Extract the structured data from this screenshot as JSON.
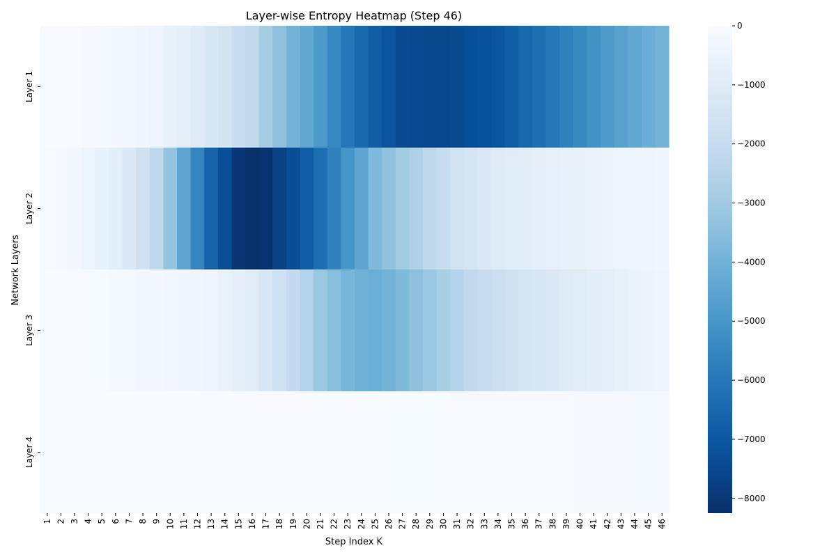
{
  "chart_data": {
    "type": "heatmap",
    "title": "Layer-wise Entropy Heatmap (Step 46)",
    "xlabel": "Step Index K",
    "ylabel": "Network Layers",
    "x_categories": [
      "1",
      "2",
      "3",
      "4",
      "5",
      "6",
      "7",
      "8",
      "9",
      "10",
      "11",
      "12",
      "13",
      "14",
      "15",
      "16",
      "17",
      "18",
      "19",
      "20",
      "21",
      "22",
      "23",
      "24",
      "25",
      "26",
      "27",
      "28",
      "29",
      "30",
      "31",
      "32",
      "33",
      "34",
      "35",
      "36",
      "37",
      "38",
      "39",
      "40",
      "41",
      "42",
      "43",
      "44",
      "45",
      "46"
    ],
    "y_categories": [
      "Layer 1",
      "Layer 2",
      "Layer 3",
      "Layer 4"
    ],
    "values": [
      [
        -20,
        -40,
        -60,
        -100,
        -150,
        -200,
        -260,
        -330,
        -420,
        -600,
        -800,
        -1000,
        -1250,
        -1500,
        -1850,
        -2200,
        -2950,
        -3400,
        -3950,
        -4400,
        -4900,
        -5500,
        -6050,
        -6500,
        -6800,
        -7100,
        -7400,
        -7450,
        -7500,
        -7500,
        -7400,
        -7300,
        -7200,
        -7050,
        -6800,
        -6500,
        -6300,
        -6050,
        -5700,
        -5450,
        -5150,
        -4850,
        -4600,
        -4400,
        -4150,
        -3950
      ],
      [
        -50,
        -100,
        -200,
        -400,
        -600,
        -850,
        -1150,
        -1650,
        -2300,
        -3300,
        -4450,
        -5600,
        -6650,
        -7300,
        -8050,
        -8250,
        -8150,
        -7700,
        -7350,
        -6800,
        -6300,
        -5700,
        -5050,
        -4450,
        -3700,
        -3350,
        -3000,
        -2650,
        -2250,
        -1950,
        -1600,
        -1400,
        -1150,
        -1050,
        -950,
        -850,
        -750,
        -700,
        -650,
        -600,
        -550,
        -500,
        -450,
        -400,
        -380,
        -350
      ],
      [
        -20,
        -30,
        -50,
        -70,
        -90,
        -110,
        -150,
        -180,
        -220,
        -260,
        -310,
        -380,
        -450,
        -550,
        -750,
        -950,
        -1350,
        -1700,
        -2100,
        -2600,
        -3150,
        -3550,
        -3850,
        -4050,
        -4100,
        -3950,
        -3700,
        -3450,
        -3150,
        -2800,
        -2500,
        -2150,
        -2000,
        -1800,
        -1650,
        -1450,
        -1300,
        -1150,
        -1050,
        -950,
        -850,
        -750,
        -650,
        -550,
        -500,
        -450
      ],
      [
        -20,
        -20,
        -20,
        -20,
        -20,
        -20,
        -20,
        -20,
        -20,
        -20,
        -20,
        -20,
        -20,
        -20,
        -20,
        -20,
        -20,
        -20,
        -20,
        -20,
        -20,
        -20,
        -20,
        -20,
        -20,
        -30,
        -30,
        -30,
        -30,
        -30,
        -40,
        -40,
        -40,
        -40,
        -40,
        -40,
        -40,
        -40,
        -40,
        -100,
        -100,
        -100,
        -100,
        -150,
        -150,
        -150
      ]
    ],
    "colormap": "Blues_r",
    "vmin": -8250,
    "vmax": 0,
    "colorbar_ticks": [
      0,
      -1000,
      -2000,
      -3000,
      -4000,
      -5000,
      -6000,
      -7000,
      -8000
    ],
    "colorbar_tick_labels": [
      "0",
      "−1000",
      "−2000",
      "−3000",
      "−4000",
      "−5000",
      "−6000",
      "−7000",
      "−8000"
    ],
    "grid": false,
    "legend": "colorbar-right"
  }
}
